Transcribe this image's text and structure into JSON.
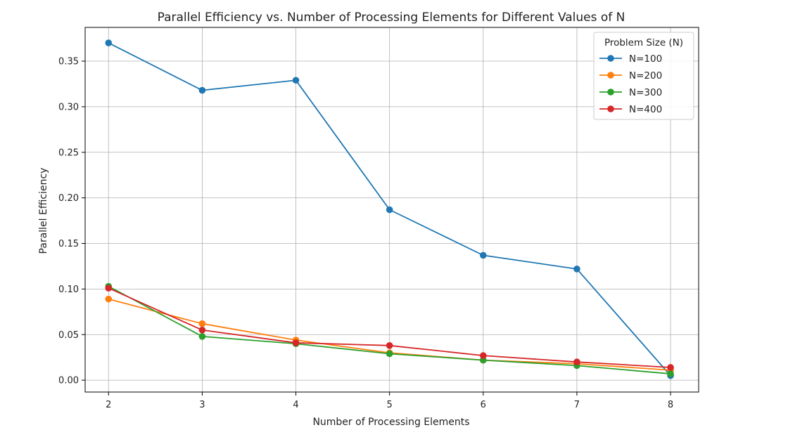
{
  "chart_data": {
    "type": "line",
    "title": "Parallel Efficiency vs. Number of Processing Elements for Different Values of N",
    "xlabel": "Number of Processing Elements",
    "ylabel": "Parallel Efficiency",
    "x": [
      2,
      3,
      4,
      5,
      6,
      7,
      8
    ],
    "xlim": [
      1.75,
      8.3
    ],
    "ylim": [
      -0.013,
      0.387
    ],
    "xticks": [
      2,
      3,
      4,
      5,
      6,
      7,
      8
    ],
    "yticks": [
      "0.00",
      "0.05",
      "0.10",
      "0.15",
      "0.20",
      "0.25",
      "0.30",
      "0.35"
    ],
    "grid": true,
    "legend": {
      "title": "Problem Size (N)",
      "placement": "top-right"
    },
    "series": [
      {
        "name": "N=100",
        "color": "#1f77b4",
        "values": [
          0.37,
          0.318,
          0.329,
          0.187,
          0.137,
          0.122,
          0.005
        ]
      },
      {
        "name": "N=200",
        "color": "#ff7f0e",
        "values": [
          0.089,
          0.062,
          0.044,
          0.03,
          0.022,
          0.018,
          0.011
        ]
      },
      {
        "name": "N=300",
        "color": "#2ca02c",
        "values": [
          0.103,
          0.048,
          0.04,
          0.029,
          0.022,
          0.016,
          0.007
        ]
      },
      {
        "name": "N=400",
        "color": "#d62728",
        "values": [
          0.101,
          0.055,
          0.041,
          0.038,
          0.027,
          0.02,
          0.014
        ]
      }
    ]
  }
}
